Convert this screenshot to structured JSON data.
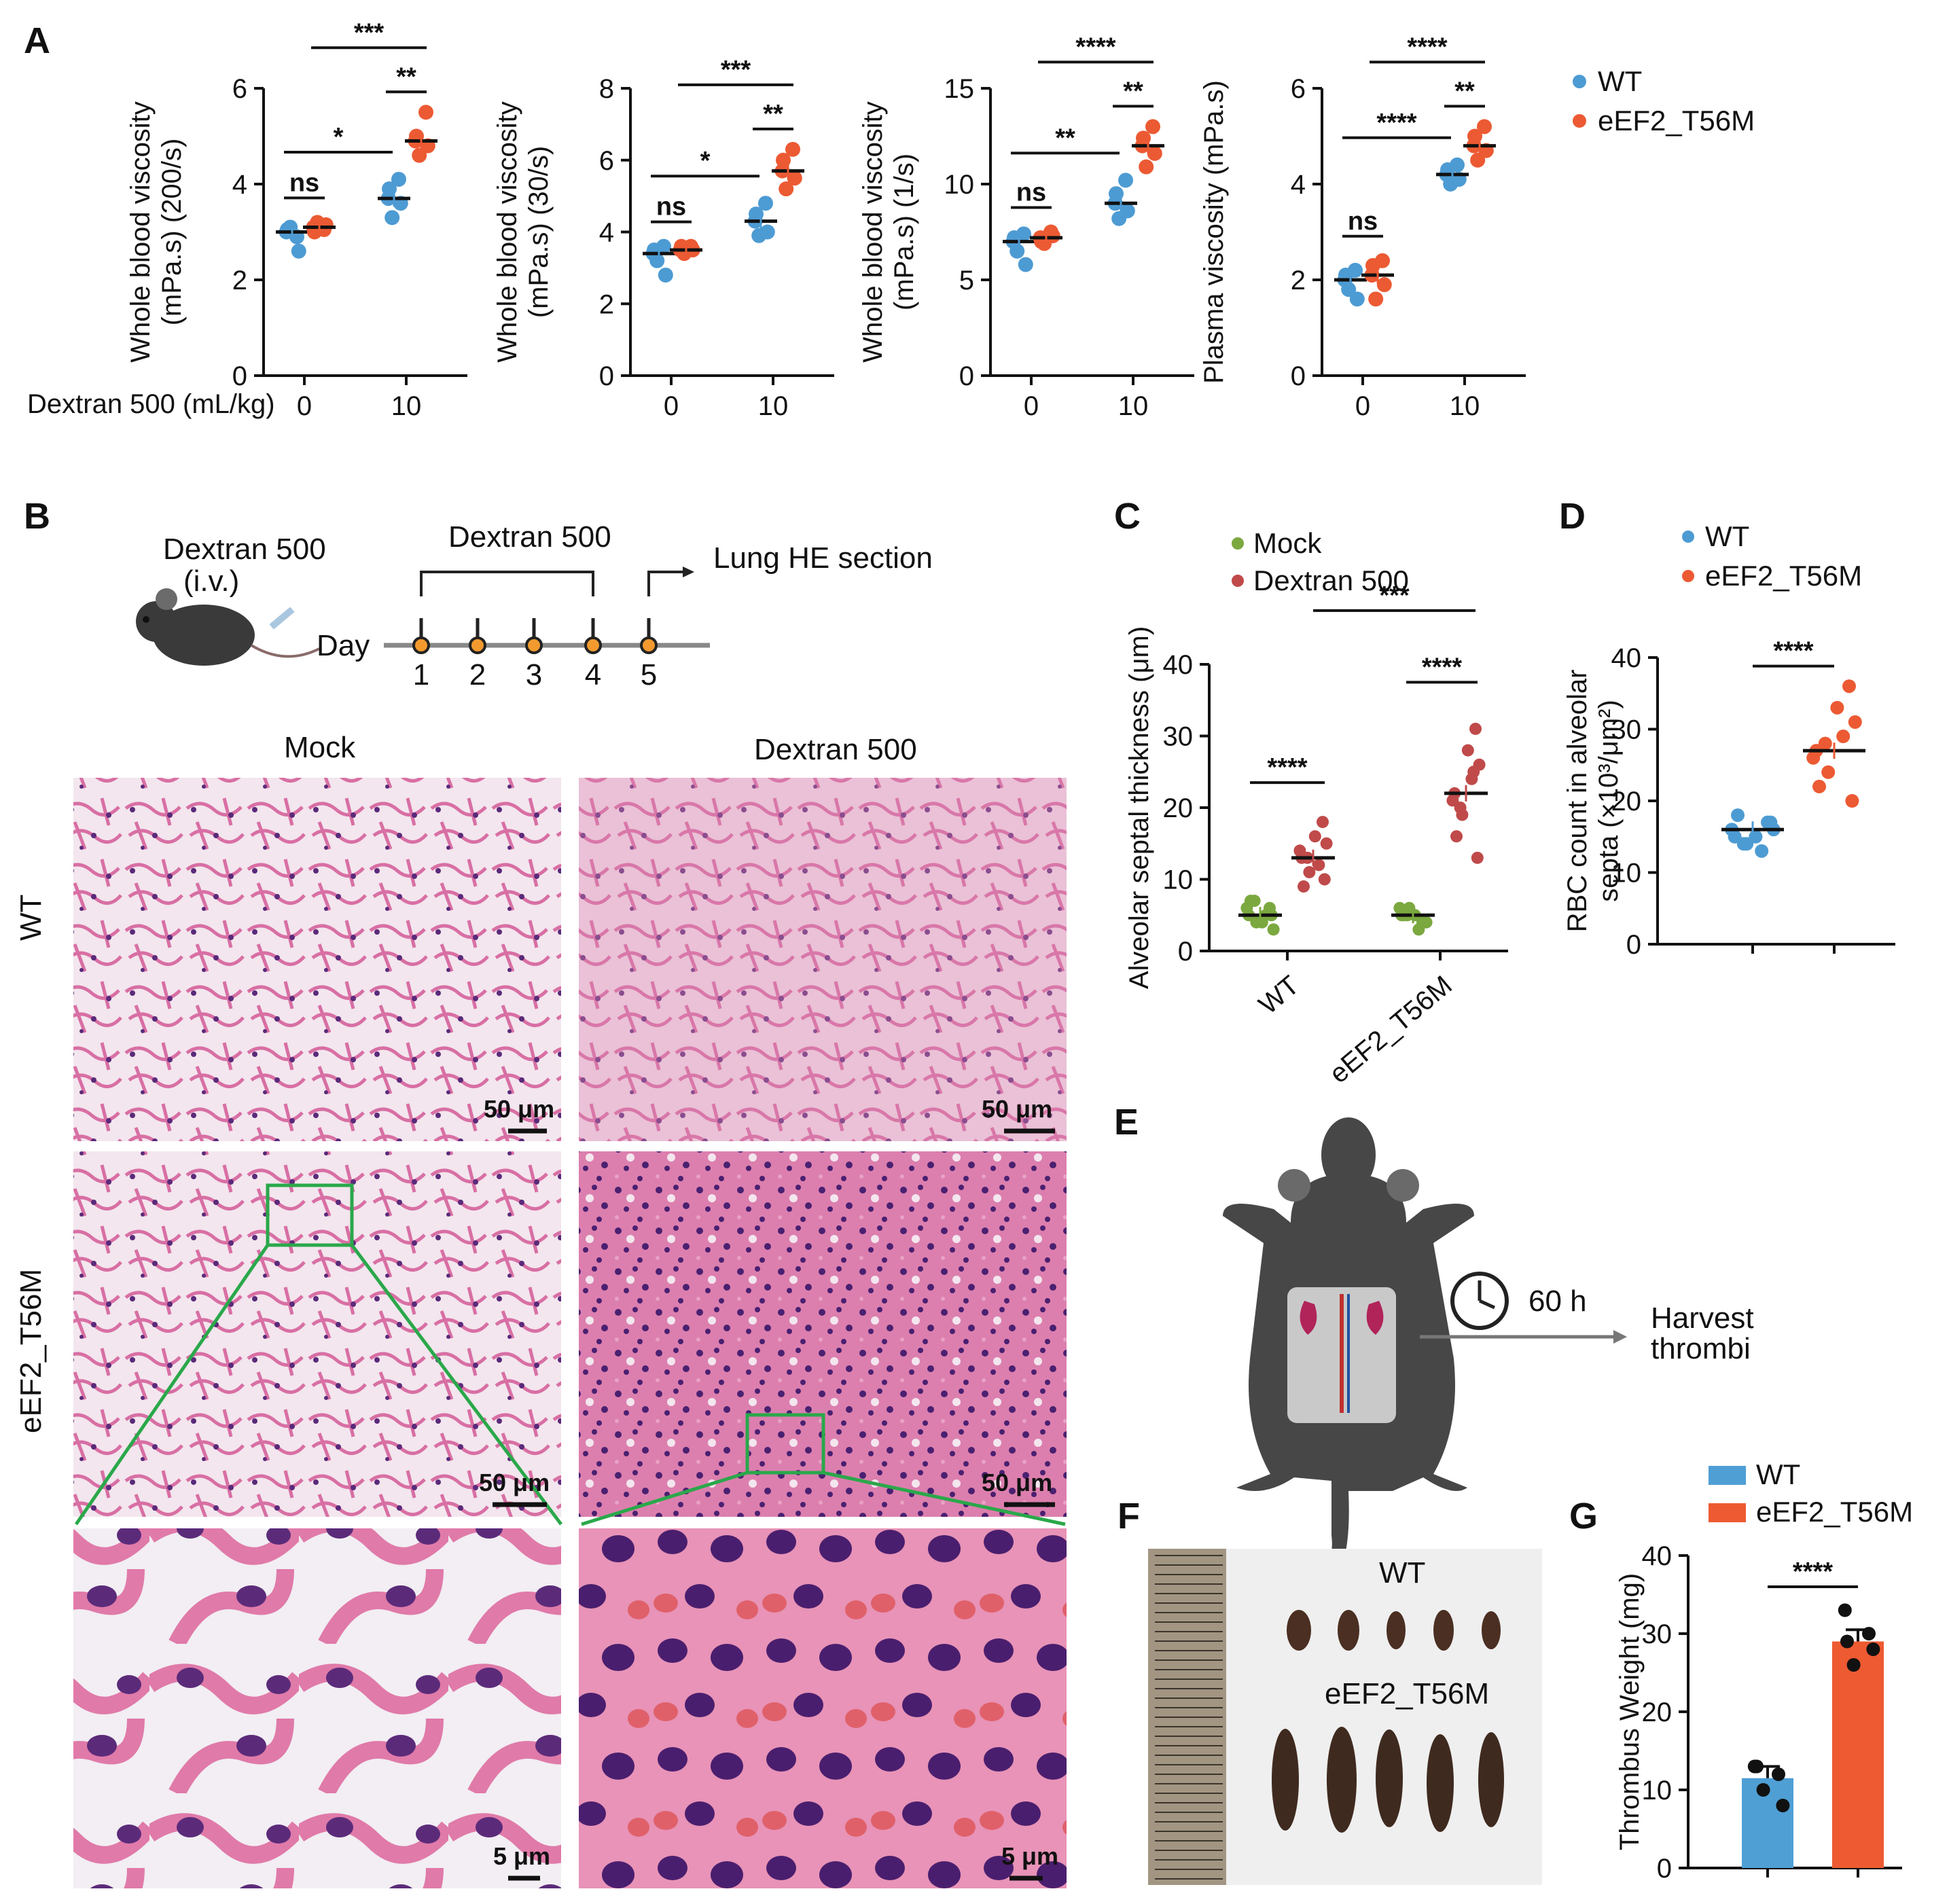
{
  "panels": {
    "A": "A",
    "B": "B",
    "C": "C",
    "D": "D",
    "E": "E",
    "F": "F",
    "G": "G"
  },
  "colors": {
    "wt": "#4d9bd3",
    "t56m": "#ec5a33",
    "mock": "#7ba83f",
    "dextran": "#c04a4a",
    "wt_bar": "#4f9fd5",
    "t56m_bar": "#ee5a31"
  },
  "panelA": {
    "xlabel_prefix": "Dextran 500 (mL/kg)",
    "legend": [
      "WT",
      "eEF2_T56M"
    ],
    "charts": [
      {
        "ylabel_line1": "Whole blood viscosity",
        "ylabel_line2": "(mPa.s) (200/s)"
      },
      {
        "ylabel_line1": "Whole blood viscosity",
        "ylabel_line2": "(mPa.s) (30/s)"
      },
      {
        "ylabel_line1": "Whole blood viscosity",
        "ylabel_line2": "(mPa.s) (1/s)"
      },
      {
        "ylabel_line1": "Plasma viscosity (mPa.s)",
        "ylabel_line2": ""
      }
    ]
  },
  "chart_data": [
    {
      "type": "scatter",
      "panel": "A1",
      "ylabel": "Whole blood viscosity (mPa.s) (200/s)",
      "xlabel": "Dextran 500 (mL/kg)",
      "categories": [
        "0",
        "10"
      ],
      "ylim": [
        0,
        6
      ],
      "yticks": [
        "0",
        "2",
        "4",
        "6"
      ],
      "series": [
        {
          "name": "WT",
          "values": [
            [
              3.0,
              2.9,
              3.1,
              2.6,
              3.05
            ],
            [
              3.7,
              4.1,
              3.3,
              3.6,
              3.9
            ]
          ],
          "mean": [
            3.0,
            3.7
          ]
        },
        {
          "name": "eEF2_T56M",
          "values": [
            [
              3.1,
              3.05,
              3.2,
              3.15,
              3.0
            ],
            [
              4.9,
              5.5,
              4.6,
              4.8,
              5.0
            ]
          ],
          "mean": [
            3.1,
            4.9
          ]
        }
      ],
      "significance": [
        "ns",
        "*",
        "**",
        "***"
      ]
    },
    {
      "type": "scatter",
      "panel": "A2",
      "ylabel": "Whole blood viscosity (mPa.s) (30/s)",
      "categories": [
        "0",
        "10"
      ],
      "ylim": [
        0,
        8
      ],
      "yticks": [
        "0",
        "2",
        "4",
        "6",
        "8"
      ],
      "series": [
        {
          "name": "WT",
          "values": [
            [
              3.4,
              3.6,
              3.2,
              2.8,
              3.5
            ],
            [
              4.3,
              4.8,
              3.9,
              4.0,
              4.5
            ]
          ],
          "mean": [
            3.4,
            4.3
          ]
        },
        {
          "name": "eEF2_T56M",
          "values": [
            [
              3.5,
              3.6,
              3.4,
              3.5,
              3.6
            ],
            [
              5.7,
              6.3,
              5.2,
              5.5,
              6.0
            ]
          ],
          "mean": [
            3.5,
            5.7
          ]
        }
      ],
      "significance": [
        "ns",
        "*",
        "**",
        "***"
      ]
    },
    {
      "type": "scatter",
      "panel": "A3",
      "ylabel": "Whole blood viscosity (mPa.s) (1/s)",
      "categories": [
        "0",
        "10"
      ],
      "ylim": [
        0,
        15
      ],
      "yticks": [
        "0",
        "5",
        "10",
        "15"
      ],
      "series": [
        {
          "name": "WT",
          "values": [
            [
              7.0,
              7.4,
              6.5,
              5.8,
              7.2
            ],
            [
              9.0,
              10.2,
              8.2,
              8.6,
              9.5
            ]
          ],
          "mean": [
            7.0,
            9.0
          ]
        },
        {
          "name": "eEF2_T56M",
          "values": [
            [
              7.2,
              7.5,
              6.9,
              7.3,
              7.0
            ],
            [
              12.0,
              13.0,
              10.9,
              11.6,
              12.4
            ]
          ],
          "mean": [
            7.2,
            12.0
          ]
        }
      ],
      "significance": [
        "ns",
        "**",
        "**",
        "****"
      ]
    },
    {
      "type": "scatter",
      "panel": "A4",
      "ylabel": "Plasma viscosity (mPa.s)",
      "categories": [
        "0",
        "10"
      ],
      "ylim": [
        0,
        6
      ],
      "yticks": [
        "0",
        "2",
        "4",
        "6"
      ],
      "series": [
        {
          "name": "WT",
          "values": [
            [
              2.0,
              2.2,
              1.8,
              1.6,
              2.1
            ],
            [
              4.2,
              4.4,
              4.0,
              4.1,
              4.3
            ]
          ],
          "mean": [
            2.0,
            4.2
          ]
        },
        {
          "name": "eEF2_T56M",
          "values": [
            [
              2.1,
              2.4,
              1.6,
              1.9,
              2.3
            ],
            [
              4.8,
              5.2,
              4.5,
              4.7,
              5.0
            ]
          ],
          "mean": [
            2.1,
            4.8
          ]
        }
      ],
      "significance": [
        "ns",
        "****",
        "**",
        "****"
      ]
    },
    {
      "type": "scatter",
      "panel": "C",
      "ylabel": "Alveolar septal thickness (μm)",
      "categories": [
        "WT",
        "eEF2_T56M"
      ],
      "ylim": [
        0,
        40
      ],
      "yticks": [
        "0",
        "10",
        "20",
        "30",
        "40"
      ],
      "series": [
        {
          "name": "Mock",
          "values": [
            [
              5,
              6,
              4,
              3,
              7,
              5,
              6,
              4,
              5,
              7
            ],
            [
              5,
              4,
              6,
              4,
              5,
              3,
              6,
              5,
              4,
              5
            ]
          ],
          "mean": [
            5.0,
            5.0
          ]
        },
        {
          "name": "Dextran 500",
          "values": [
            [
              13,
              18,
              11,
              15,
              9,
              12,
              14,
              16,
              10,
              13
            ],
            [
              22,
              31,
              19,
              26,
              16,
              24,
              21,
              28,
              13,
              20,
              25
            ]
          ],
          "mean": [
            13.0,
            22.0
          ]
        }
      ],
      "legend": [
        "Mock",
        "Dextran 500"
      ],
      "significance": [
        "****",
        "****",
        "***"
      ]
    },
    {
      "type": "scatter",
      "panel": "D",
      "ylabel": "RBC count in alveolar septa (×10³/μm²)",
      "categories": [
        "WT",
        "eEF2_T56M"
      ],
      "ylim": [
        0,
        40
      ],
      "yticks": [
        "0",
        "10",
        "20",
        "30",
        "40"
      ],
      "series": [
        {
          "name": "WT",
          "values": [
            15,
            17,
            14,
            16,
            18,
            13,
            16,
            15,
            17,
            14
          ],
          "mean": 16
        },
        {
          "name": "eEF2_T56M",
          "values": [
            27,
            36,
            24,
            31,
            22,
            29,
            26,
            33,
            20,
            28
          ],
          "mean": 27
        }
      ],
      "legend": [
        "WT",
        "eEF2_T56M"
      ],
      "significance": [
        "****"
      ]
    },
    {
      "type": "bar",
      "panel": "G",
      "ylabel": "Thrombus Weight (mg)",
      "categories": [
        "WT",
        "eEF2_T56M"
      ],
      "ylim": [
        0,
        40
      ],
      "yticks": [
        "0",
        "10",
        "20",
        "30",
        "40"
      ],
      "values": [
        11.5,
        29.0
      ],
      "points": [
        [
          13,
          12,
          10,
          8,
          13
        ],
        [
          33,
          30,
          26,
          28,
          29
        ]
      ],
      "legend": [
        "WT",
        "eEF2_T56M"
      ],
      "significance": [
        "****"
      ]
    }
  ],
  "panelB": {
    "schematic": {
      "title": "Dextran 500",
      "route": "(i.v.)",
      "bracket_label": "Dextran 500",
      "day_label": "Day",
      "days": [
        "1",
        "2",
        "3",
        "4",
        "5"
      ],
      "endpoint": "Lung HE section"
    },
    "col_labels": [
      "Mock",
      "Dextran 500"
    ],
    "row_labels": [
      "WT",
      "eEF2_T56M"
    ],
    "scalebars": {
      "large": "50 μm",
      "small": "5 μm"
    }
  },
  "panelE": {
    "time": "60 h",
    "outcome_line1": "Harvest",
    "outcome_line2": "thrombi"
  },
  "panelF": {
    "label_wt": "WT",
    "label_t56m": "eEF2_T56M"
  }
}
